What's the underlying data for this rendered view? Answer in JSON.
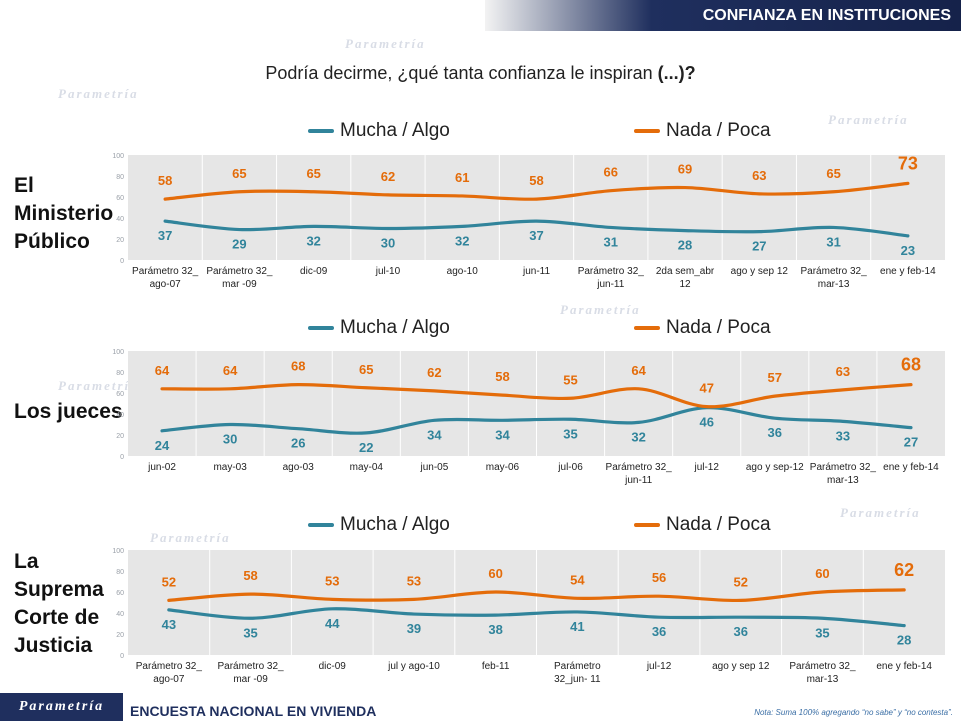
{
  "header": {
    "title": "CONFIANZA EN INSTITUCIONES"
  },
  "question": {
    "text": "Podría decirme, ¿qué tanta confianza le inspiran",
    "highlight": "(...)?"
  },
  "watermark": "Parametría",
  "legend": {
    "series1": "Mucha / Algo",
    "series2": "Nada / Poca"
  },
  "colors": {
    "series1": "#31849b",
    "series2": "#e46c0a",
    "plot_bg": "#e6e6e6",
    "brand": "#1f2f5e"
  },
  "footer": {
    "logo": "Parametría",
    "title": "ENCUESTA NACIONAL  EN VIVIENDA",
    "note": "Nota: Suma 100%  agregando “no sabe” y “no contesta”."
  },
  "chart_data": [
    {
      "type": "line",
      "title": "El Ministerio Público",
      "categories": [
        "Parámetro 32_ ago-07",
        "Parámetro 32_ mar -09",
        "dic-09",
        "jul-10",
        "ago-10",
        "jun-11",
        "Parámetro 32_ jun-11",
        "2da sem_abr 12",
        "ago y sep 12",
        "Parámetro 32_ mar-13",
        "ene y feb-14"
      ],
      "series": [
        {
          "name": "Mucha / Algo",
          "values": [
            37,
            29,
            32,
            30,
            32,
            37,
            31,
            28,
            27,
            31,
            23
          ]
        },
        {
          "name": "Nada / Poca",
          "values": [
            58,
            65,
            65,
            62,
            61,
            58,
            66,
            69,
            63,
            65,
            73
          ]
        }
      ],
      "ylim": [
        0,
        100
      ],
      "yticks": [
        "0",
        "20",
        "40",
        "60",
        "80",
        "100"
      ]
    },
    {
      "type": "line",
      "title": "Los jueces",
      "categories": [
        "jun-02",
        "may-03",
        "ago-03",
        "may-04",
        "jun-05",
        "may-06",
        "jul-06",
        "Parámetro 32_ jun-11",
        "jul-12",
        "ago y sep-12",
        "Parámetro 32_ mar-13",
        "ene y feb-14"
      ],
      "series": [
        {
          "name": "Mucha / Algo",
          "values": [
            24,
            30,
            26,
            22,
            34,
            34,
            35,
            32,
            46,
            36,
            33,
            27
          ]
        },
        {
          "name": "Nada / Poca",
          "values": [
            64,
            64,
            68,
            65,
            62,
            58,
            55,
            64,
            47,
            57,
            63,
            68
          ]
        }
      ],
      "ylim": [
        0,
        100
      ],
      "yticks": [
        "0",
        "20",
        "40",
        "60",
        "80",
        "100"
      ]
    },
    {
      "type": "line",
      "title": "La Suprema Corte de Justicia",
      "categories": [
        "Parámetro 32_ ago-07",
        "Parámetro 32_ mar -09",
        "dic-09",
        "jul y ago-10",
        "feb-11",
        "Parámetro 32_jun- 11",
        "jul-12",
        "ago y sep 12",
        "Parámetro 32_ mar-13",
        "ene y feb-14"
      ],
      "series": [
        {
          "name": "Mucha / Algo",
          "values": [
            43,
            35,
            44,
            39,
            38,
            41,
            36,
            36,
            35,
            28
          ]
        },
        {
          "name": "Nada / Poca",
          "values": [
            52,
            58,
            53,
            53,
            60,
            54,
            56,
            52,
            60,
            62
          ]
        }
      ],
      "ylim": [
        0,
        100
      ],
      "yticks": [
        "0",
        "20",
        "40",
        "60",
        "80",
        "100"
      ]
    }
  ]
}
